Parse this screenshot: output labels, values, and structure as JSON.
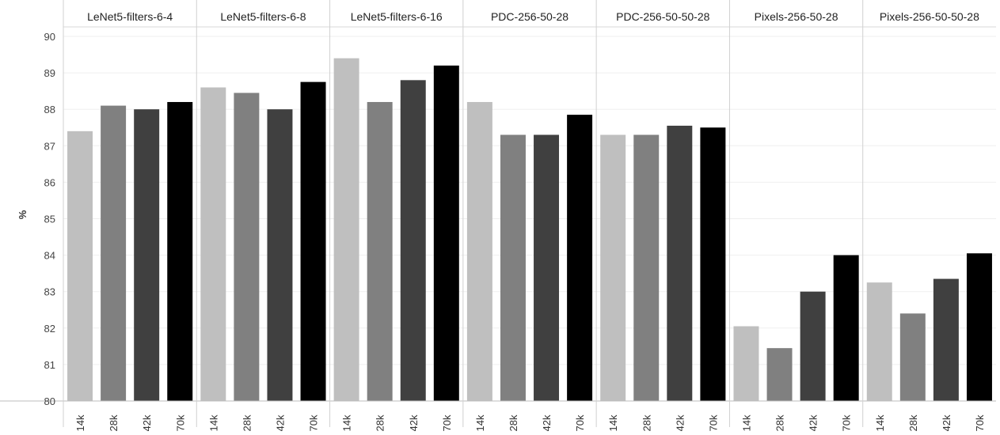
{
  "chart_data": {
    "type": "bar",
    "ylabel": "%",
    "ylim": [
      80,
      90
    ],
    "yticks": [
      80,
      81,
      82,
      83,
      84,
      85,
      86,
      87,
      88,
      89,
      90
    ],
    "categories": [
      "14k",
      "28k",
      "42k",
      "70k"
    ],
    "colors": [
      "#bfbfbf",
      "#808080",
      "#404040",
      "#000000"
    ],
    "grid": true,
    "panels": [
      {
        "name": "LeNet5-filters-6-4",
        "values": [
          87.4,
          88.1,
          88.0,
          88.2
        ]
      },
      {
        "name": "LeNet5-filters-6-8",
        "values": [
          88.6,
          88.45,
          88.0,
          88.75
        ]
      },
      {
        "name": "LeNet5-filters-6-16",
        "values": [
          89.4,
          88.2,
          88.8,
          89.2
        ]
      },
      {
        "name": "PDC-256-50-28",
        "values": [
          88.2,
          87.3,
          87.3,
          87.85
        ]
      },
      {
        "name": "PDC-256-50-50-28",
        "values": [
          87.3,
          87.3,
          87.55,
          87.5
        ]
      },
      {
        "name": "Pixels-256-50-28",
        "values": [
          82.05,
          81.45,
          83.0,
          84.0
        ]
      },
      {
        "name": "Pixels-256-50-50-28",
        "values": [
          83.25,
          82.4,
          83.35,
          84.05
        ]
      }
    ]
  }
}
